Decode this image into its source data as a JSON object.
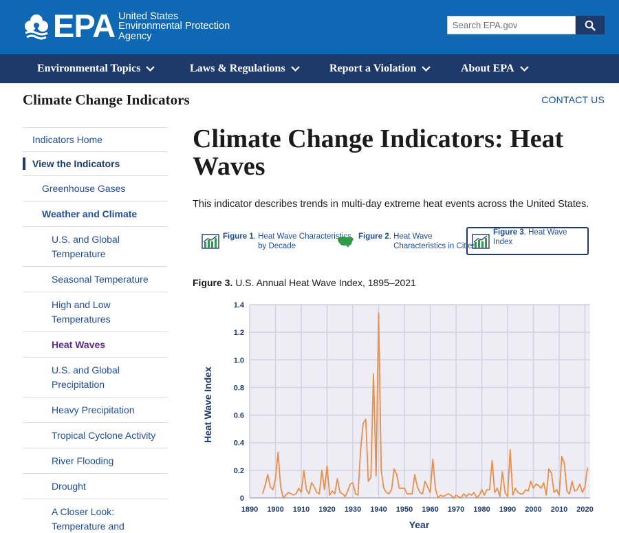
{
  "header": {
    "logo_text": "EPA",
    "agency_line1": "United States",
    "agency_line2": "Environmental Protection",
    "agency_line3": "Agency",
    "search_placeholder": "Search EPA.gov",
    "brand_color": "#0e68b3",
    "nav_color": "#1d3a6b"
  },
  "nav": [
    {
      "label": "Environmental Topics"
    },
    {
      "label": "Laws & Regulations"
    },
    {
      "label": "Report a Violation"
    },
    {
      "label": "About EPA"
    }
  ],
  "subheader": {
    "site_title": "Climate Change Indicators",
    "contact": "CONTACT US"
  },
  "sidebar": [
    {
      "label": "Indicators Home",
      "level": 0
    },
    {
      "label": "View the Indicators",
      "level": 0,
      "state": "active"
    },
    {
      "label": "Greenhouse Gases",
      "level": 1
    },
    {
      "label": "Weather and Climate",
      "level": 1,
      "state": "bold"
    },
    {
      "label": "U.S. and Global Temperature",
      "level": 2
    },
    {
      "label": "Seasonal Temperature",
      "level": 2
    },
    {
      "label": "High and Low Temperatures",
      "level": 2
    },
    {
      "label": "Heat Waves",
      "level": 2,
      "state": "current"
    },
    {
      "label": "U.S. and Global Precipitation",
      "level": 2
    },
    {
      "label": "Heavy Precipitation",
      "level": 2
    },
    {
      "label": "Tropical Cyclone Activity",
      "level": 2
    },
    {
      "label": "River Flooding",
      "level": 2
    },
    {
      "label": "Drought",
      "level": 2
    },
    {
      "label": "A Closer Look: Temperature and Drought in the Southwest",
      "level": 2
    }
  ],
  "main": {
    "title": "Climate Change Indicators: Heat Waves",
    "intro": "This indicator describes trends in multi-day extreme heat events across the United States.",
    "figure_tabs": [
      {
        "num": "Figure 1",
        "text": "Heat Wave Characteristics by Decade",
        "icon": "bar-chart-icon"
      },
      {
        "num": "Figure 2",
        "text": "Heat Wave Characteristics in Cities",
        "icon": "us-map-icon"
      },
      {
        "num": "Figure 3",
        "text": "Heat Wave Index",
        "icon": "bar-chart-icon",
        "selected": true
      }
    ],
    "figure_caption_num": "Figure 3.",
    "figure_caption_text": "U.S. Annual Heat Wave Index, 1895–2021"
  },
  "chart_data": {
    "type": "line",
    "title": "U.S. Annual Heat Wave Index, 1895–2021",
    "xlabel": "Year",
    "ylabel": "Heat Wave Index",
    "xlim": [
      1890,
      2022
    ],
    "ylim": [
      0,
      1.4
    ],
    "xticks": [
      1890,
      1900,
      1910,
      1920,
      1930,
      1940,
      1950,
      1960,
      1970,
      1980,
      1990,
      2000,
      2010,
      2020
    ],
    "yticks": [
      0,
      0.2,
      0.4,
      0.6,
      0.8,
      1.0,
      1.2,
      1.4
    ],
    "ytick_labels": [
      "0",
      "0.2",
      "0.4",
      "0.6",
      "0.8",
      "1.0",
      "1.2",
      "1.4"
    ],
    "grid": true,
    "line_color": "#e8904a",
    "plot_bg": "#eeedf6",
    "x": [
      1895,
      1896,
      1897,
      1898,
      1899,
      1900,
      1901,
      1902,
      1903,
      1904,
      1905,
      1906,
      1907,
      1908,
      1909,
      1910,
      1911,
      1912,
      1913,
      1914,
      1915,
      1916,
      1917,
      1918,
      1919,
      1920,
      1921,
      1922,
      1923,
      1924,
      1925,
      1926,
      1927,
      1928,
      1929,
      1930,
      1931,
      1932,
      1933,
      1934,
      1935,
      1936,
      1937,
      1938,
      1939,
      1940,
      1941,
      1942,
      1943,
      1944,
      1945,
      1946,
      1947,
      1948,
      1949,
      1950,
      1951,
      1952,
      1953,
      1954,
      1955,
      1956,
      1957,
      1958,
      1959,
      1960,
      1961,
      1962,
      1963,
      1964,
      1965,
      1966,
      1967,
      1968,
      1969,
      1970,
      1971,
      1972,
      1973,
      1974,
      1975,
      1976,
      1977,
      1978,
      1979,
      1980,
      1981,
      1982,
      1983,
      1984,
      1985,
      1986,
      1987,
      1988,
      1989,
      1990,
      1991,
      1992,
      1993,
      1994,
      1995,
      1996,
      1997,
      1998,
      1999,
      2000,
      2001,
      2002,
      2003,
      2004,
      2005,
      2006,
      2007,
      2008,
      2009,
      2010,
      2011,
      2012,
      2013,
      2014,
      2015,
      2016,
      2017,
      2018,
      2019,
      2020,
      2021
    ],
    "y": [
      0.03,
      0.09,
      0.17,
      0.08,
      0.06,
      0.14,
      0.33,
      0.08,
      0.0,
      0.02,
      0.04,
      0.03,
      0.02,
      0.03,
      0.07,
      0.04,
      0.2,
      0.06,
      0.03,
      0.11,
      0.08,
      0.04,
      0.03,
      0.2,
      0.06,
      0.23,
      0.02,
      0.05,
      0.03,
      0.14,
      0.04,
      0.03,
      0.01,
      0.05,
      0.1,
      0.11,
      0.03,
      0.02,
      0.35,
      0.54,
      0.57,
      0.12,
      0.15,
      0.9,
      0.16,
      1.34,
      0.2,
      0.07,
      0.04,
      0.03,
      0.06,
      0.21,
      0.17,
      0.07,
      0.07,
      0.07,
      0.03,
      0.03,
      0.03,
      0.17,
      0.08,
      0.04,
      0.03,
      0.12,
      0.08,
      0.04,
      0.28,
      0.07,
      0.0,
      0.02,
      0.01,
      0.02,
      0.03,
      0.02,
      0.0,
      0.02,
      0.01,
      0.0,
      0.03,
      0.01,
      0.03,
      0.02,
      0.04,
      0.0,
      0.02,
      0.06,
      0.02,
      0.06,
      0.06,
      0.27,
      0.04,
      0.07,
      0.01,
      0.19,
      0.04,
      0.01,
      0.35,
      0.02,
      0.07,
      0.04,
      0.03,
      0.03,
      0.06,
      0.05,
      0.12,
      0.07,
      0.1,
      0.09,
      0.07,
      0.11,
      0.02,
      0.21,
      0.18,
      0.04,
      0.06,
      0.02,
      0.3,
      0.25,
      0.05,
      0.03,
      0.12,
      0.05,
      0.06,
      0.1,
      0.04,
      0.08,
      0.22
    ]
  }
}
